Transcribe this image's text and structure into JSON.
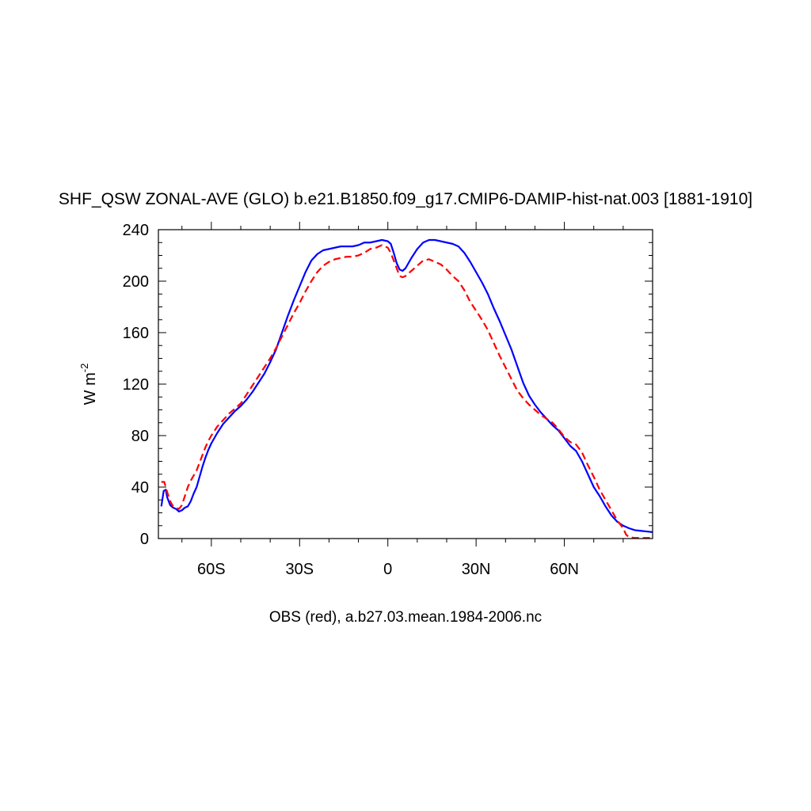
{
  "chart_data": {
    "type": "line",
    "title": "SHF_QSW ZONAL-AVE (GLO) b.e21.B1850.f09_g17.CMIP6-DAMIP-hist-nat.003 [1881-1910]",
    "ylabel": "W m",
    "ylabel_sup": "-2",
    "xlabel": "OBS (red), a.b27.03.mean.1984-2006.nc",
    "xlim": [
      -78,
      90
    ],
    "ylim": [
      0,
      240
    ],
    "x_ticks": [
      {
        "value": -60,
        "label": "60S"
      },
      {
        "value": -30,
        "label": "30S"
      },
      {
        "value": 0,
        "label": "0"
      },
      {
        "value": 30,
        "label": "30N"
      },
      {
        "value": 60,
        "label": "60N"
      }
    ],
    "y_ticks": [
      {
        "value": 0,
        "label": "0"
      },
      {
        "value": 40,
        "label": "40"
      },
      {
        "value": 80,
        "label": "80"
      },
      {
        "value": 120,
        "label": "120"
      },
      {
        "value": 160,
        "label": "160"
      },
      {
        "value": 200,
        "label": "200"
      },
      {
        "value": 240,
        "label": "240"
      }
    ],
    "series": [
      {
        "color": "#0000ff",
        "dash": "solid",
        "points": [
          [
            -77,
            25
          ],
          [
            -76.2,
            37
          ],
          [
            -75.5,
            38
          ],
          [
            -75,
            32
          ],
          [
            -74,
            26
          ],
          [
            -73,
            24
          ],
          [
            -72,
            23
          ],
          [
            -71,
            21
          ],
          [
            -70,
            22
          ],
          [
            -69,
            24
          ],
          [
            -68,
            25
          ],
          [
            -67,
            29
          ],
          [
            -66,
            35
          ],
          [
            -65,
            40
          ],
          [
            -64,
            48
          ],
          [
            -63,
            56
          ],
          [
            -62,
            63
          ],
          [
            -61,
            69
          ],
          [
            -60,
            74
          ],
          [
            -58,
            82
          ],
          [
            -56,
            89
          ],
          [
            -54,
            94
          ],
          [
            -52,
            99
          ],
          [
            -50,
            103
          ],
          [
            -48,
            108
          ],
          [
            -46,
            114
          ],
          [
            -44,
            121
          ],
          [
            -42,
            128
          ],
          [
            -40,
            137
          ],
          [
            -38,
            147
          ],
          [
            -36,
            160
          ],
          [
            -34,
            173
          ],
          [
            -32,
            185
          ],
          [
            -30,
            196
          ],
          [
            -28,
            207
          ],
          [
            -26,
            216
          ],
          [
            -24,
            221
          ],
          [
            -22,
            224
          ],
          [
            -20,
            225
          ],
          [
            -18,
            226
          ],
          [
            -16,
            227
          ],
          [
            -14,
            227
          ],
          [
            -12,
            227
          ],
          [
            -10,
            228
          ],
          [
            -8,
            230
          ],
          [
            -6,
            230
          ],
          [
            -4,
            231
          ],
          [
            -2,
            232
          ],
          [
            0,
            231
          ],
          [
            1,
            229
          ],
          [
            2,
            222
          ],
          [
            3,
            214
          ],
          [
            4,
            209
          ],
          [
            5,
            208
          ],
          [
            6,
            210
          ],
          [
            7,
            214
          ],
          [
            8,
            218
          ],
          [
            10,
            225
          ],
          [
            12,
            230
          ],
          [
            14,
            232
          ],
          [
            16,
            232
          ],
          [
            18,
            231
          ],
          [
            20,
            230
          ],
          [
            22,
            229
          ],
          [
            24,
            227
          ],
          [
            26,
            222
          ],
          [
            28,
            215
          ],
          [
            30,
            207
          ],
          [
            32,
            199
          ],
          [
            34,
            190
          ],
          [
            36,
            179
          ],
          [
            38,
            169
          ],
          [
            40,
            158
          ],
          [
            42,
            147
          ],
          [
            44,
            134
          ],
          [
            46,
            121
          ],
          [
            48,
            111
          ],
          [
            50,
            104
          ],
          [
            52,
            98
          ],
          [
            54,
            93
          ],
          [
            56,
            88
          ],
          [
            58,
            84
          ],
          [
            60,
            78
          ],
          [
            62,
            72
          ],
          [
            64,
            68
          ],
          [
            66,
            60
          ],
          [
            68,
            50
          ],
          [
            70,
            40
          ],
          [
            72,
            33
          ],
          [
            74,
            25
          ],
          [
            76,
            18
          ],
          [
            78,
            13
          ],
          [
            80,
            10
          ],
          [
            82,
            8
          ],
          [
            84,
            6.5
          ],
          [
            86,
            6
          ],
          [
            88,
            5.5
          ],
          [
            90,
            5
          ]
        ]
      },
      {
        "color": "#ff0000",
        "dash": "dashed",
        "points": [
          [
            -77,
            44
          ],
          [
            -76,
            44
          ],
          [
            -75,
            36
          ],
          [
            -74,
            29
          ],
          [
            -73,
            25
          ],
          [
            -72,
            24
          ],
          [
            -71,
            23
          ],
          [
            -70,
            26
          ],
          [
            -69,
            33
          ],
          [
            -68,
            40
          ],
          [
            -67,
            45
          ],
          [
            -66,
            49
          ],
          [
            -65,
            53
          ],
          [
            -64,
            59
          ],
          [
            -63,
            65
          ],
          [
            -62,
            71
          ],
          [
            -61,
            76
          ],
          [
            -60,
            80
          ],
          [
            -58,
            87
          ],
          [
            -56,
            92
          ],
          [
            -54,
            97
          ],
          [
            -52,
            101
          ],
          [
            -50,
            105
          ],
          [
            -48,
            112
          ],
          [
            -46,
            119
          ],
          [
            -44,
            126
          ],
          [
            -42,
            133
          ],
          [
            -40,
            140
          ],
          [
            -38,
            148
          ],
          [
            -36,
            157
          ],
          [
            -34,
            166
          ],
          [
            -32,
            175
          ],
          [
            -30,
            183
          ],
          [
            -28,
            192
          ],
          [
            -26,
            200
          ],
          [
            -24,
            207
          ],
          [
            -22,
            212
          ],
          [
            -20,
            215
          ],
          [
            -18,
            217
          ],
          [
            -16,
            218
          ],
          [
            -14,
            219
          ],
          [
            -12,
            219
          ],
          [
            -10,
            220
          ],
          [
            -8,
            222
          ],
          [
            -6,
            225
          ],
          [
            -4,
            226
          ],
          [
            -2,
            228
          ],
          [
            0,
            226
          ],
          [
            1,
            222
          ],
          [
            2,
            216
          ],
          [
            3,
            210
          ],
          [
            4,
            204
          ],
          [
            5,
            203
          ],
          [
            6,
            204
          ],
          [
            7,
            206
          ],
          [
            8,
            208
          ],
          [
            10,
            212
          ],
          [
            12,
            216
          ],
          [
            14,
            217
          ],
          [
            16,
            215
          ],
          [
            18,
            213
          ],
          [
            20,
            209
          ],
          [
            22,
            204
          ],
          [
            24,
            200
          ],
          [
            26,
            193
          ],
          [
            28,
            184
          ],
          [
            30,
            177
          ],
          [
            32,
            170
          ],
          [
            34,
            162
          ],
          [
            36,
            152
          ],
          [
            38,
            142
          ],
          [
            40,
            133
          ],
          [
            42,
            124
          ],
          [
            44,
            115
          ],
          [
            46,
            109
          ],
          [
            48,
            104
          ],
          [
            50,
            100
          ],
          [
            52,
            96
          ],
          [
            54,
            93
          ],
          [
            56,
            90
          ],
          [
            58,
            85
          ],
          [
            60,
            79
          ],
          [
            62,
            75
          ],
          [
            64,
            73
          ],
          [
            66,
            67
          ],
          [
            68,
            57
          ],
          [
            70,
            48
          ],
          [
            72,
            38
          ],
          [
            74,
            30
          ],
          [
            76,
            22
          ],
          [
            78,
            14
          ],
          [
            80,
            8
          ],
          [
            81,
            3
          ],
          [
            82,
            1
          ],
          [
            84,
            0.5
          ],
          [
            86,
            0.5
          ],
          [
            88,
            0.5
          ],
          [
            90,
            0.5
          ]
        ]
      }
    ]
  }
}
